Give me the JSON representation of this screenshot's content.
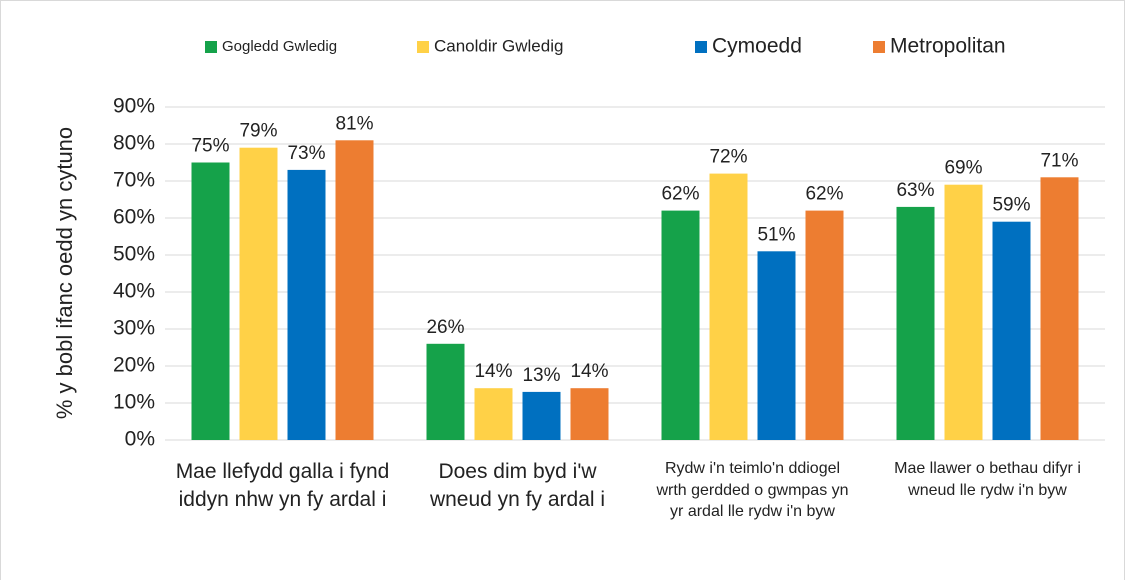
{
  "chart_data": {
    "type": "bar",
    "y_label": "% y bobl ifanc oedd yn cytuno",
    "categories": [
      "Mae llefydd galla i fynd iddyn nhw yn fy ardal i",
      "Does dim byd i'w wneud yn fy ardal i",
      "Rydw i'n teimlo'n ddiogel wrth gerdded o gwmpas yn yr ardal lle rydw i'n byw",
      "Mae llawer o bethau difyr i wneud lle rydw i'n byw"
    ],
    "series": [
      {
        "name": "Gogledd Gwledig",
        "color": "#15a24a",
        "values": [
          75,
          26,
          62,
          63
        ],
        "value_labels": [
          "75%",
          "26%",
          "62%",
          "63%"
        ]
      },
      {
        "name": "Canoldir Gwledig",
        "color": "#ffd147",
        "values": [
          79,
          14,
          72,
          69
        ],
        "value_labels": [
          "79%",
          "14%",
          "72%",
          "69%"
        ]
      },
      {
        "name": "Cymoedd",
        "color": "#0070c0",
        "values": [
          73,
          13,
          51,
          59
        ],
        "value_labels": [
          "73%",
          "13%",
          "51%",
          "59%"
        ]
      },
      {
        "name": "Metropolitan",
        "color": "#ed7d31",
        "values": [
          81,
          14,
          62,
          71
        ],
        "value_labels": [
          "81%",
          "14%",
          "62%",
          "71%"
        ]
      }
    ],
    "ylim": [
      0,
      90
    ],
    "yticks": [
      {
        "value": 0,
        "label": "0%"
      },
      {
        "value": 10,
        "label": "10%"
      },
      {
        "value": 20,
        "label": "20%"
      },
      {
        "value": 30,
        "label": "30%"
      },
      {
        "value": 40,
        "label": "40%"
      },
      {
        "value": 50,
        "label": "50%"
      },
      {
        "value": 60,
        "label": "60%"
      },
      {
        "value": 70,
        "label": "70%"
      },
      {
        "value": 80,
        "label": "80%"
      },
      {
        "value": 90,
        "label": "90%"
      }
    ],
    "grid": true,
    "legend": "top"
  }
}
